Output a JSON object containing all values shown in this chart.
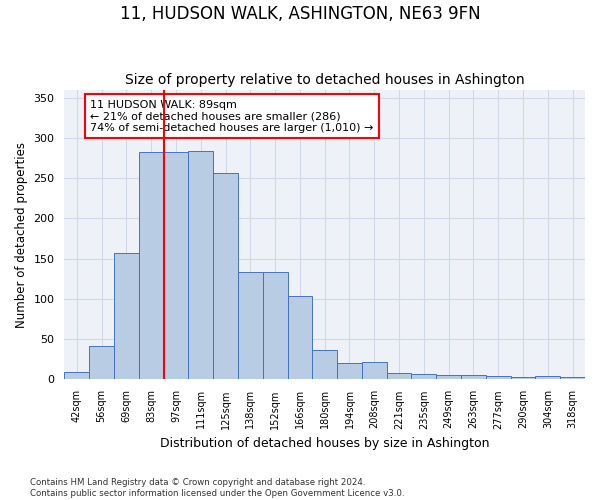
{
  "title": "11, HUDSON WALK, ASHINGTON, NE63 9FN",
  "subtitle": "Size of property relative to detached houses in Ashington",
  "xlabel": "Distribution of detached houses by size in Ashington",
  "ylabel": "Number of detached properties",
  "categories": [
    "42sqm",
    "56sqm",
    "69sqm",
    "83sqm",
    "97sqm",
    "111sqm",
    "125sqm",
    "138sqm",
    "152sqm",
    "166sqm",
    "180sqm",
    "194sqm",
    "208sqm",
    "221sqm",
    "235sqm",
    "249sqm",
    "263sqm",
    "277sqm",
    "290sqm",
    "304sqm",
    "318sqm"
  ],
  "values": [
    9,
    41,
    157,
    282,
    282,
    284,
    256,
    134,
    134,
    104,
    36,
    21,
    22,
    8,
    7,
    6,
    5,
    4,
    3,
    4,
    3
  ],
  "bar_color": "#b8cce4",
  "bar_edge_color": "#4472c4",
  "annotation_text": "11 HUDSON WALK: 89sqm\n← 21% of detached houses are smaller (286)\n74% of semi-detached houses are larger (1,010) →",
  "annotation_box_color": "white",
  "annotation_box_edge_color": "red",
  "property_line_color": "red",
  "ylim": [
    0,
    360
  ],
  "yticks": [
    0,
    50,
    100,
    150,
    200,
    250,
    300,
    350
  ],
  "grid_color": "#d0d8e8",
  "bg_color": "#eef2f8",
  "footer_text": "Contains HM Land Registry data © Crown copyright and database right 2024.\nContains public sector information licensed under the Open Government Licence v3.0.",
  "title_fontsize": 12,
  "subtitle_fontsize": 10,
  "bar_width": 1.0
}
